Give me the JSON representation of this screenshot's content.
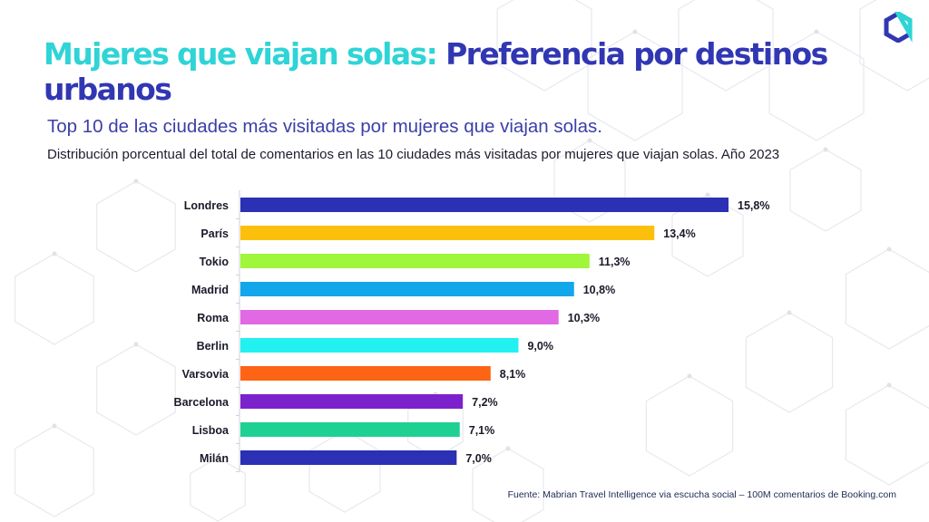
{
  "header": {
    "title_highlight": "Mujeres que viajan solas:",
    "title_main": "Preferencia por destinos urbanos",
    "subtitle": "Top 10 de las ciudades más visitadas por mujeres que viajan solas.",
    "description": "Distribución porcentual  del total de comentarios en las 10 ciudades más visitadas por mujeres que viajan solas. Año 2023"
  },
  "logo": {
    "icon": "hexagon-ring-icon",
    "colors": [
      "#3137b3",
      "#2fd4d6"
    ]
  },
  "footer": {
    "source": "Fuente: Mabrian Travel Intelligence via escucha social – 100M comentarios de Booking.com"
  },
  "chart_data": {
    "type": "bar",
    "orientation": "horizontal",
    "categories": [
      "Londres",
      "París",
      "Tokio",
      "Madrid",
      "Roma",
      "Berlin",
      "Varsovia",
      "Barcelona",
      "Lisboa",
      "Milán"
    ],
    "values": [
      15.8,
      13.4,
      11.3,
      10.8,
      10.3,
      9.0,
      8.1,
      7.2,
      7.1,
      7.0
    ],
    "value_labels": [
      "15,8%",
      "13,4%",
      "11,3%",
      "10,8%",
      "10,3%",
      "9,0%",
      "8,1%",
      "7,2%",
      "7,1%",
      "7,0%"
    ],
    "colors": [
      "#2b30b5",
      "#fcc00c",
      "#a0f63a",
      "#12a6ea",
      "#e169e3",
      "#22f1f1",
      "#fd6414",
      "#7b22cc",
      "#1ed192",
      "#2b30b5"
    ],
    "xlim": [
      0,
      15.8
    ],
    "grid": false,
    "legend": "none"
  }
}
